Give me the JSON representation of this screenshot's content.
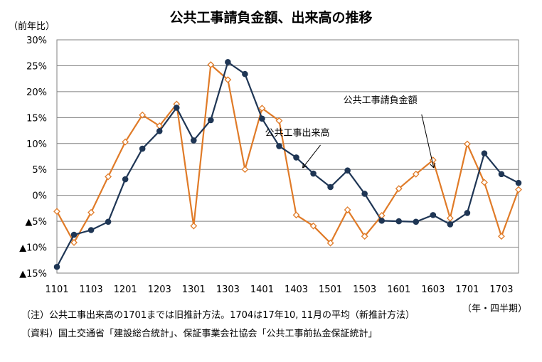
{
  "title": "公共工事請負金額、出来高の推移",
  "y_unit": "（前年比）",
  "x_unit": "（年・四半期）",
  "notes": [
    "（注）公共工事出来高の1701までは旧推計方法。1704は17年10, 11月の平均（新推計方法）",
    "（資料）国土交通省「建設総合統計」、保証事業会社協会「公共工事前払金保証統計」"
  ],
  "chart_data": {
    "type": "line",
    "title": "公共工事請負金額、出来高の推移",
    "ylabel": "（前年比）",
    "xlabel": "（年・四半期）",
    "ylim": [
      -15,
      30
    ],
    "ytick_values": [
      30,
      25,
      20,
      15,
      10,
      5,
      0,
      -5,
      -10,
      -15
    ],
    "ytick_labels": [
      "30%",
      "25%",
      "20%",
      "15%",
      "10%",
      "5%",
      "0%",
      "▲5%",
      "▲10%",
      "▲15%"
    ],
    "grid": true,
    "x": [
      "1101",
      "1102",
      "1103",
      "1104",
      "1201",
      "1202",
      "1203",
      "1204",
      "1301",
      "1302",
      "1303",
      "1304",
      "1401",
      "1402",
      "1403",
      "1404",
      "1501",
      "1502",
      "1503",
      "1504",
      "1601",
      "1602",
      "1603",
      "1604",
      "1701",
      "1702",
      "1703",
      "1704"
    ],
    "xtick_labels": [
      "1101",
      "1103",
      "1201",
      "1203",
      "1301",
      "1303",
      "1401",
      "1403",
      "1501",
      "1503",
      "1601",
      "1603",
      "1701",
      "1703"
    ],
    "series": [
      {
        "name": "公共工事出来高",
        "color": "#1f3655",
        "marker": "circle",
        "values": [
          -13.8,
          -7.6,
          -6.7,
          -5.1,
          3.1,
          9.0,
          12.4,
          16.9,
          10.6,
          14.5,
          25.7,
          23.4,
          14.8,
          9.5,
          7.3,
          4.2,
          1.6,
          4.8,
          0.3,
          -4.9,
          -5.0,
          -5.1,
          -3.8,
          -5.6,
          -3.4,
          8.1,
          4.1,
          2.4
        ]
      },
      {
        "name": "公共工事請負金額",
        "color": "#e07b28",
        "marker": "diamond",
        "values": [
          -3.1,
          -9.1,
          -3.3,
          3.6,
          10.3,
          15.5,
          13.4,
          17.6,
          -5.9,
          25.2,
          22.3,
          5.0,
          16.8,
          14.4,
          -3.8,
          -5.9,
          -9.2,
          -2.8,
          -7.9,
          -3.9,
          1.3,
          4.1,
          6.8,
          -4.4,
          9.9,
          2.5,
          -7.9,
          1.1
        ]
      }
    ],
    "annotations": [
      {
        "text": "公共工事出来高",
        "series": "公共工事出来高"
      },
      {
        "text": "公共工事請負金額",
        "series": "公共工事請負金額"
      }
    ]
  }
}
